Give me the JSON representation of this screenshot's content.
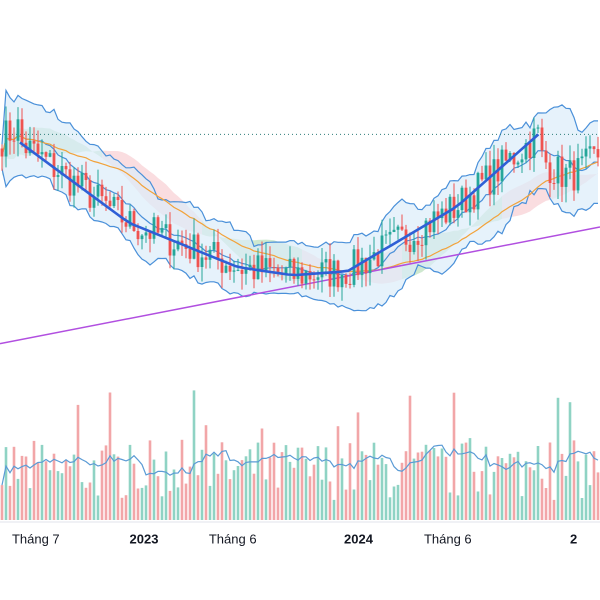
{
  "chart_data": {
    "type": "candlestick",
    "title": "",
    "xlabel": "",
    "ylabel": "",
    "x_ticks": [
      {
        "label": "Tháng 7",
        "date": "2022-07",
        "is_year": false
      },
      {
        "label": "2023",
        "date": "2023-01",
        "is_year": true
      },
      {
        "label": "Tháng 6",
        "date": "2023-06",
        "is_year": false
      },
      {
        "label": "2024",
        "date": "2024-01",
        "is_year": true
      },
      {
        "label": "Tháng 6",
        "date": "2024-06",
        "is_year": false
      },
      {
        "label": "2",
        "date": "2025-01",
        "is_year": true
      }
    ],
    "x_range": [
      "2022-05-01",
      "2025-02-15"
    ],
    "grid": false,
    "legend": "none",
    "colors": {
      "up": "#26a69a",
      "down": "#ef5350",
      "volume_up": "#8fd3c4",
      "volume_down": "#f2a6a8",
      "band_line": "#4a90d9",
      "band_fill": "#dbecf9",
      "cloud_bull": "#a5d6a7",
      "cloud_bear": "#f6c1c6",
      "ma_orange": "#f2a23a",
      "trend_purple": "#b14fe0",
      "cup_line": "#2f5fd6",
      "resistance": "#2e7d7a",
      "volume_ma": "#5b9bd5"
    },
    "overlays": {
      "cup_curve": [
        [
          0,
          11.8
        ],
        [
          0.2,
          9.8
        ],
        [
          0.4,
          8.7
        ],
        [
          0.5,
          8.5
        ],
        [
          0.6,
          8.6
        ],
        [
          0.8,
          10.2
        ],
        [
          0.95,
          12.0
        ]
      ],
      "purple_trendline": [
        [
          0,
          6.8
        ],
        [
          1,
          9.7
        ]
      ],
      "resistance_level": 12.0
    }
  }
}
